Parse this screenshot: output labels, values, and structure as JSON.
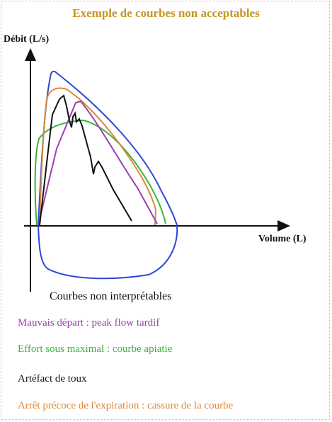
{
  "title": "Exemple de courbes non acceptables",
  "y_axis_label": "Débit (L/s)",
  "x_axis_label": "Volume (L)",
  "caption": "Courbes non interprétables",
  "legend": [
    {
      "label": "Mauvais départ : peak flow tardif",
      "color": "#9b3fae"
    },
    {
      "label": "Effort sous maximal : courbe apiatie",
      "color": "#3cb43c"
    },
    {
      "label": "Artéfact de toux",
      "color": "#111111"
    },
    {
      "label": "Arrêt précoce de l'expiration : cassure de la courbe",
      "color": "#d98a3a"
    }
  ],
  "colors": {
    "reference_curve": "#2a48d6",
    "late_peak": "#9b3fae",
    "submaximal": "#3cb43c",
    "cough": "#111111",
    "early_stop": "#d98a3a",
    "title": "#c8961e"
  }
}
